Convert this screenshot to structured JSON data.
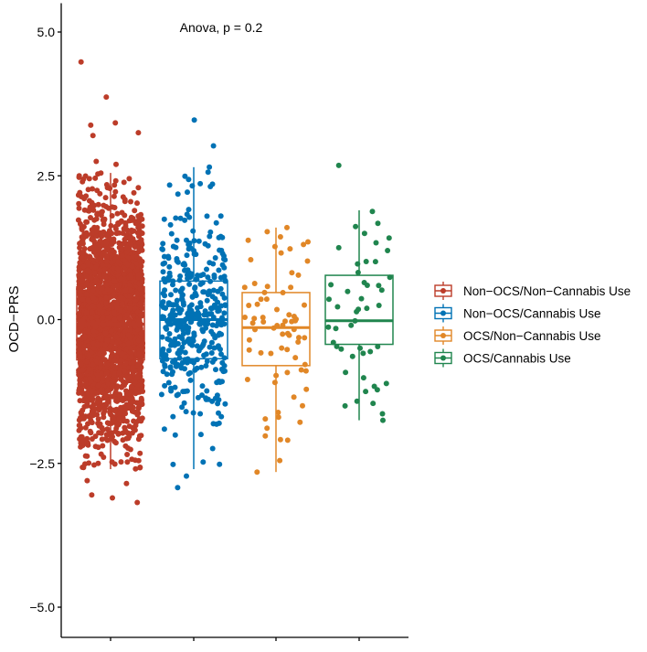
{
  "chart_data": {
    "type": "box-jitter",
    "title": "Anova, p = 0.2",
    "xlabel": "",
    "ylabel": "OCD−PRS",
    "ylim": [
      -5.5,
      5.5
    ],
    "yticks": [
      5.0,
      2.5,
      0.0,
      -2.5,
      -5.0
    ],
    "ytick_labels": [
      "5.0",
      "2.5",
      "0.0",
      "−2.5",
      "−5.0"
    ],
    "grid": false,
    "legend_position": "right",
    "series": [
      {
        "name": "Non-OCS/Non-Cannabis Use",
        "display": "Non−OCS/Non−Cannabis Use",
        "color": "#BC3C29",
        "box": {
          "q1": -0.7,
          "median": -0.08,
          "q3": 0.57,
          "whisker_low": -2.6,
          "whisker_high": 2.55
        },
        "approx_n": 2500,
        "sd": 0.95,
        "extreme_points": [
          4.48,
          3.87,
          3.42,
          3.38,
          3.25,
          3.2,
          2.75,
          2.7,
          -2.8,
          -2.85,
          -3.05,
          -3.1,
          -3.18
        ]
      },
      {
        "name": "Non-OCS/Cannabis Use",
        "display": "Non−OCS/Cannabis Use",
        "color": "#0072B5",
        "box": {
          "q1": -0.68,
          "median": 0.0,
          "q3": 0.67,
          "whisker_low": -2.6,
          "whisker_high": 2.65
        },
        "approx_n": 400,
        "sd": 0.95,
        "extreme_points": [
          3.47,
          3.02,
          2.65,
          -2.72,
          -2.92
        ]
      },
      {
        "name": "OCS/Non-Cannabis Use",
        "display": "OCS/Non−Cannabis Use",
        "color": "#E18727",
        "box": {
          "q1": -0.8,
          "median": -0.14,
          "q3": 0.47,
          "whisker_low": -2.65,
          "whisker_high": 1.6
        },
        "approx_n": 70,
        "sd": 0.9,
        "extreme_points": [
          1.6,
          1.38,
          1.27,
          -2.45,
          -2.65
        ]
      },
      {
        "name": "OCS/Cannabis Use",
        "display": "OCS/Cannabis Use",
        "color": "#20854E",
        "box": {
          "q1": -0.43,
          "median": -0.02,
          "q3": 0.77,
          "whisker_low": -1.75,
          "whisker_high": 1.9
        },
        "approx_n": 40,
        "sd": 0.8,
        "extreme_points": [
          2.68,
          1.88,
          1.5,
          1.42,
          1.25,
          1.2,
          -1.25,
          -1.42,
          -1.5,
          -1.75
        ]
      }
    ]
  }
}
